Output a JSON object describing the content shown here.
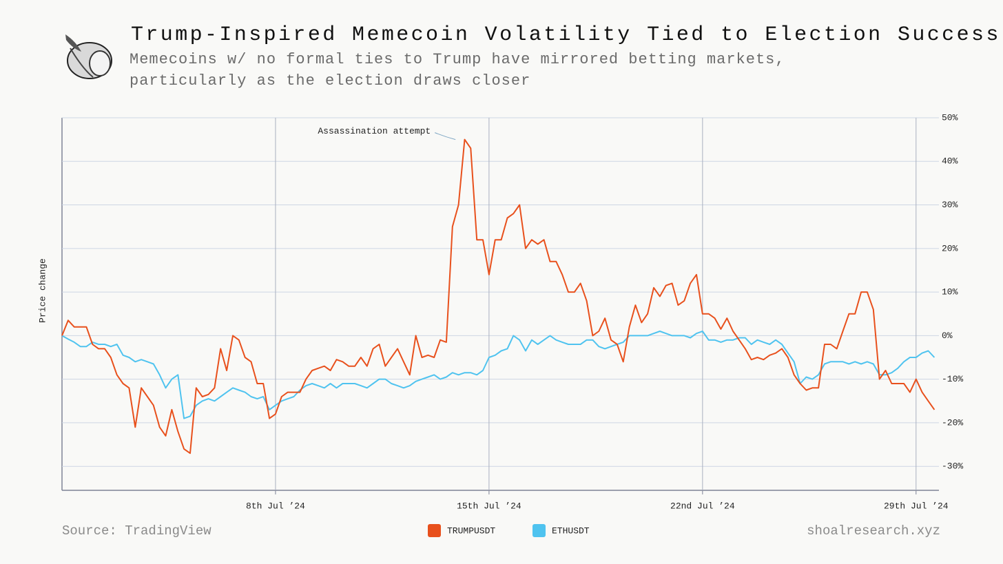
{
  "header": {
    "title": "Trump-Inspired Memecoin Volatility Tied to Election Success Odds",
    "subtitle": "Memecoins w/ no formal ties to Trump have mirrored betting markets, particularly as the election draws closer"
  },
  "footer": {
    "source": "Source: TradingView",
    "site": "shoalresearch.xyz"
  },
  "chart_data": {
    "type": "line",
    "y_label": "Price change",
    "legend": "bottom",
    "grid": true,
    "xlim": [
      1,
      29.75
    ],
    "xticks": [
      {
        "value": 8,
        "label": "8th Jul ’24"
      },
      {
        "value": 15,
        "label": "15th Jul ’24"
      },
      {
        "value": 22,
        "label": "22nd Jul ’24"
      },
      {
        "value": 29,
        "label": "29th Jul ’24"
      }
    ],
    "ylim": [
      -35.5,
      50
    ],
    "yticks": [
      {
        "value": 50,
        "label": "50%"
      },
      {
        "value": 40,
        "label": "40%"
      },
      {
        "value": 30,
        "label": "30%"
      },
      {
        "value": 20,
        "label": "20%"
      },
      {
        "value": 10,
        "label": "10%"
      },
      {
        "value": 0,
        "label": "0%"
      },
      {
        "value": -10,
        "label": "-10%"
      },
      {
        "value": -20,
        "label": "-20%"
      },
      {
        "value": -30,
        "label": "-30%"
      }
    ],
    "annotations": [
      {
        "text": "Assassination attempt",
        "x": 13.9,
        "y": 45
      }
    ],
    "x": [
      1,
      1.2,
      1.4,
      1.6,
      1.8,
      2,
      2.2,
      2.4,
      2.6,
      2.8,
      3,
      3.2,
      3.4,
      3.6,
      3.8,
      4,
      4.2,
      4.4,
      4.6,
      4.8,
      5,
      5.2,
      5.4,
      5.6,
      5.8,
      6,
      6.2,
      6.4,
      6.6,
      6.8,
      7,
      7.2,
      7.4,
      7.6,
      7.8,
      8,
      8.2,
      8.4,
      8.6,
      8.8,
      9,
      9.2,
      9.4,
      9.6,
      9.8,
      10,
      10.2,
      10.4,
      10.6,
      10.8,
      11,
      11.2,
      11.4,
      11.6,
      11.8,
      12,
      12.2,
      12.4,
      12.6,
      12.8,
      13,
      13.2,
      13.4,
      13.6,
      13.8,
      14,
      14.2,
      14.4,
      14.6,
      14.8,
      15,
      15.2,
      15.4,
      15.6,
      15.8,
      16,
      16.2,
      16.4,
      16.6,
      16.8,
      17,
      17.2,
      17.4,
      17.6,
      17.8,
      18,
      18.2,
      18.4,
      18.6,
      18.8,
      19,
      19.2,
      19.4,
      19.6,
      19.8,
      20,
      20.2,
      20.4,
      20.6,
      20.8,
      21,
      21.2,
      21.4,
      21.6,
      21.8,
      22,
      22.2,
      22.4,
      22.6,
      22.8,
      23,
      23.2,
      23.4,
      23.6,
      23.8,
      24,
      24.2,
      24.4,
      24.6,
      24.8,
      25,
      25.2,
      25.4,
      25.6,
      25.8,
      26,
      26.2,
      26.4,
      26.6,
      26.8,
      27,
      27.2,
      27.4,
      27.6,
      27.8,
      28,
      28.2,
      28.4,
      28.6,
      28.8,
      29,
      29.2,
      29.4,
      29.6
    ],
    "series": [
      {
        "name": "TRUMPUSDT",
        "color": "#e8501c",
        "values": [
          0,
          3.5,
          2,
          2,
          2,
          -2,
          -3,
          -3,
          -5,
          -9,
          -11,
          -12,
          -21,
          -12,
          -14,
          -16,
          -21,
          -23,
          -17,
          -22,
          -26,
          -27,
          -12,
          -14,
          -13.5,
          -12,
          -3,
          -8,
          0,
          -1,
          -5,
          -6,
          -11,
          -11,
          -19,
          -18,
          -14,
          -13,
          -13,
          -13,
          -10,
          -8,
          -7.5,
          -7,
          -8,
          -5.5,
          -6,
          -7,
          -7,
          -5,
          -7,
          -3,
          -2,
          -7,
          -5,
          -3,
          -6,
          -9,
          0,
          -5,
          -4.5,
          -5,
          -1,
          -1.5,
          25,
          30,
          45,
          43,
          22,
          22,
          14,
          22,
          22,
          27,
          28,
          30,
          20,
          22,
          21,
          22,
          17,
          17,
          14,
          10,
          10,
          12,
          8,
          0,
          1,
          4,
          -1,
          -2,
          -6,
          2,
          7,
          3,
          5,
          11,
          9,
          11.5,
          12,
          7,
          8,
          12,
          14,
          5,
          5,
          4,
          1.5,
          4,
          1,
          -1,
          -3,
          -5.5,
          -5,
          -5.5,
          -4.5,
          -4,
          -3,
          -5,
          -9,
          -11,
          -12.5,
          -12,
          -12,
          -2,
          -2,
          -3,
          1,
          5,
          5,
          10,
          10,
          6,
          -10,
          -8,
          -11,
          -11,
          -11,
          -13,
          -10,
          -13,
          -15,
          -17
        ]
      },
      {
        "name": "ETHUSDT",
        "color": "#4fc3ef",
        "values": [
          0,
          -0.8,
          -1.5,
          -2.5,
          -2.5,
          -1.5,
          -2,
          -2,
          -2.5,
          -2,
          -4.5,
          -5,
          -6,
          -5.5,
          -6,
          -6.5,
          -9,
          -12,
          -10,
          -9,
          -19,
          -18.5,
          -16,
          -15,
          -14.5,
          -15,
          -14,
          -13,
          -12,
          -12.5,
          -13,
          -14,
          -14.5,
          -14,
          -17,
          -16,
          -15,
          -14.5,
          -14,
          -12.5,
          -11.5,
          -11,
          -11.5,
          -12,
          -11,
          -12,
          -11,
          -11,
          -11,
          -11.5,
          -12,
          -11,
          -10,
          -10,
          -11,
          -11.5,
          -12,
          -11.5,
          -10.5,
          -10,
          -9.5,
          -9,
          -10,
          -9.5,
          -8.5,
          -9,
          -8.5,
          -8.5,
          -9,
          -8,
          -5,
          -4.5,
          -3.5,
          -3,
          0,
          -1,
          -3.5,
          -1,
          -2,
          -1,
          0,
          -1,
          -1.5,
          -2,
          -2,
          -2,
          -1,
          -1,
          -2.5,
          -3,
          -2.5,
          -2,
          -1.5,
          0,
          0,
          0,
          0,
          0.5,
          1,
          0.5,
          0,
          0,
          0,
          -0.5,
          0.5,
          1,
          -1,
          -1,
          -1.5,
          -1,
          -1,
          -0.5,
          -0.5,
          -2,
          -1,
          -1.5,
          -2,
          -1,
          -2,
          -4,
          -6,
          -11,
          -9.5,
          -10,
          -9,
          -6.5,
          -6,
          -6,
          -6,
          -6.5,
          -6,
          -6.5,
          -6,
          -6.5,
          -9,
          -9,
          -8.5,
          -7.5,
          -6,
          -5,
          -5,
          -4,
          -3.5,
          -5
        ]
      }
    ]
  }
}
